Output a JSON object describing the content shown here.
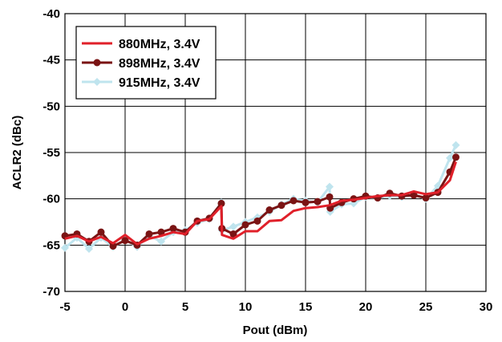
{
  "chart_data": {
    "type": "line",
    "xlabel": "Pout (dBm)",
    "ylabel": "ACLR2 (dBc)",
    "xlim": [
      -5,
      30
    ],
    "ylim": [
      -70,
      -40
    ],
    "x_ticks": [
      "-5",
      "0",
      "5",
      "10",
      "15",
      "20",
      "25",
      "30"
    ],
    "y_ticks": [
      "-40",
      "-45",
      "-50",
      "-55",
      "-60",
      "-65",
      "-70"
    ],
    "grid": true,
    "legend_position": "top-left",
    "series": [
      {
        "name": "880MHz, 3.4V",
        "color": "#e0202a",
        "marker": "none",
        "points": [
          [
            -5,
            -64.3
          ],
          [
            -4,
            -64.0
          ],
          [
            -3,
            -64.6
          ],
          [
            -2,
            -64.1
          ],
          [
            -1,
            -64.8
          ],
          [
            0,
            -63.9
          ],
          [
            1,
            -64.9
          ],
          [
            2,
            -64.3
          ],
          [
            3,
            -64.0
          ],
          [
            4,
            -63.6
          ],
          [
            5,
            -63.8
          ],
          [
            6,
            -62.4
          ],
          [
            7,
            -62.2
          ],
          [
            8,
            -60.8
          ],
          [
            8.05,
            -63.9
          ],
          [
            9,
            -64.3
          ],
          [
            10,
            -63.5
          ],
          [
            11,
            -63.5
          ],
          [
            12,
            -62.4
          ],
          [
            13,
            -62.3
          ],
          [
            14,
            -61.3
          ],
          [
            15,
            -61.0
          ],
          [
            16,
            -60.9
          ],
          [
            17,
            -60.7
          ],
          [
            18,
            -60.2
          ],
          [
            19,
            -60.1
          ],
          [
            20,
            -59.9
          ],
          [
            21,
            -59.7
          ],
          [
            22,
            -59.6
          ],
          [
            23,
            -59.6
          ],
          [
            24,
            -59.2
          ],
          [
            25,
            -59.5
          ],
          [
            26,
            -59.3
          ],
          [
            27,
            -58.0
          ],
          [
            27.5,
            -56.0
          ]
        ]
      },
      {
        "name": "898MHz, 3.4V",
        "color": "#7a1414",
        "marker": "circle",
        "points": [
          [
            -5,
            -64.0
          ],
          [
            -4,
            -63.8
          ],
          [
            -3,
            -64.6
          ],
          [
            -2,
            -63.6
          ],
          [
            -1,
            -65.1
          ],
          [
            0,
            -64.5
          ],
          [
            1,
            -65.0
          ],
          [
            2,
            -63.8
          ],
          [
            3,
            -63.6
          ],
          [
            4,
            -63.2
          ],
          [
            5,
            -63.6
          ],
          [
            6,
            -62.4
          ],
          [
            7,
            -62.1
          ],
          [
            8,
            -60.5
          ],
          [
            8.05,
            -63.2
          ],
          [
            9,
            -63.8
          ],
          [
            10,
            -62.8
          ],
          [
            11,
            -62.4
          ],
          [
            12,
            -61.2
          ],
          [
            13,
            -60.7
          ],
          [
            14,
            -60.2
          ],
          [
            15,
            -60.4
          ],
          [
            16,
            -60.3
          ],
          [
            17,
            -59.8
          ],
          [
            17.05,
            -61.0
          ],
          [
            18,
            -60.4
          ],
          [
            19,
            -60.0
          ],
          [
            20,
            -59.7
          ],
          [
            21,
            -59.9
          ],
          [
            22,
            -59.4
          ],
          [
            23,
            -59.7
          ],
          [
            24,
            -59.6
          ],
          [
            25,
            -59.9
          ],
          [
            26,
            -59.3
          ],
          [
            27,
            -57.1
          ],
          [
            27.5,
            -55.5
          ]
        ]
      },
      {
        "name": "915MHz, 3.4V",
        "color": "#bfe4ee",
        "marker": "diamond",
        "points": [
          [
            -5,
            -65.3
          ],
          [
            -4,
            -64.2
          ],
          [
            -3,
            -65.4
          ],
          [
            -2,
            -64.2
          ],
          [
            -1,
            -65.2
          ],
          [
            0,
            -64.4
          ],
          [
            1,
            -65.2
          ],
          [
            2,
            -64.0
          ],
          [
            3,
            -64.6
          ],
          [
            4,
            -63.6
          ],
          [
            5,
            -63.4
          ],
          [
            6,
            -62.6
          ],
          [
            7,
            -62.2
          ],
          [
            8,
            -60.4
          ],
          [
            8.05,
            -63.4
          ],
          [
            9,
            -63.0
          ],
          [
            10,
            -62.5
          ],
          [
            11,
            -62.0
          ],
          [
            12,
            -61.4
          ],
          [
            13,
            -60.6
          ],
          [
            14,
            -60.0
          ],
          [
            15,
            -60.2
          ],
          [
            16,
            -60.4
          ],
          [
            17,
            -58.7
          ],
          [
            17.05,
            -61.4
          ],
          [
            18,
            -60.6
          ],
          [
            19,
            -60.5
          ],
          [
            20,
            -59.8
          ],
          [
            21,
            -59.9
          ],
          [
            22,
            -59.7
          ],
          [
            23,
            -59.8
          ],
          [
            24,
            -59.5
          ],
          [
            25,
            -60.0
          ],
          [
            26,
            -58.6
          ],
          [
            27,
            -55.6
          ],
          [
            27.5,
            -54.2
          ]
        ]
      }
    ]
  }
}
